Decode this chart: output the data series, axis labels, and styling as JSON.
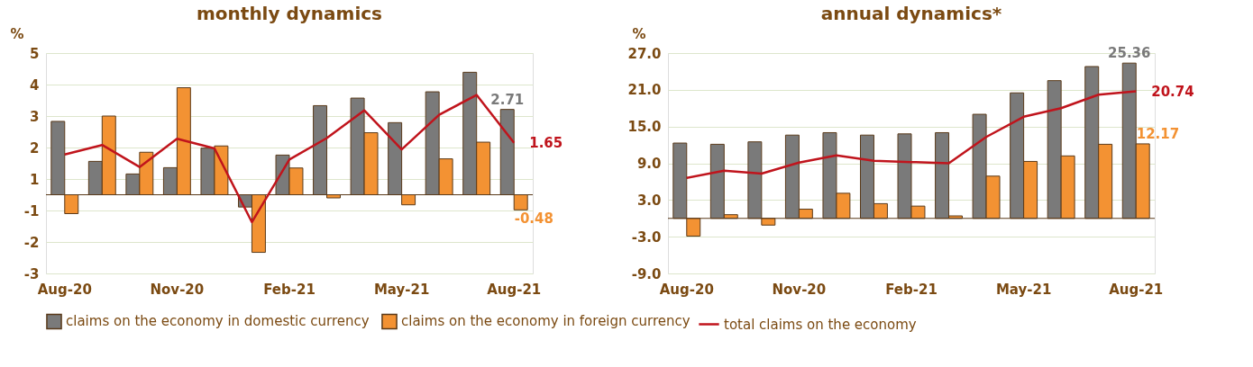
{
  "chart_data": [
    {
      "type": "bar",
      "title": "monthly dynamics",
      "ylabel": "%",
      "categories": [
        "Aug-20",
        null,
        null,
        "Nov-20",
        null,
        null,
        "Feb-21",
        null,
        null,
        "May-21",
        null,
        null,
        "Aug-21"
      ],
      "series": [
        {
          "name": "claims on the economy in domestic currency",
          "color": "#7a7a7a",
          "values": [
            2.33,
            1.06,
            0.66,
            0.86,
            1.48,
            -0.39,
            1.26,
            2.83,
            3.07,
            2.29,
            3.27,
            3.89,
            2.71
          ],
          "value_labels": [
            null,
            null,
            null,
            null,
            null,
            null,
            null,
            null,
            null,
            null,
            null,
            null,
            "2.71"
          ]
        },
        {
          "name": "claims on the economy in foreign currency",
          "color": "#f39233",
          "values": [
            -0.6,
            2.5,
            1.35,
            3.4,
            1.55,
            -1.83,
            0.85,
            -0.1,
            1.97,
            -0.32,
            1.14,
            1.67,
            -0.48
          ],
          "value_labels": [
            null,
            null,
            null,
            null,
            null,
            null,
            null,
            null,
            null,
            null,
            null,
            null,
            "-0.48"
          ]
        },
        {
          "name": "total claims on the economy",
          "type": "line",
          "color": "#c0141c",
          "values": [
            1.28,
            1.58,
            0.88,
            1.78,
            1.47,
            -0.87,
            1.12,
            1.8,
            2.68,
            1.44,
            2.54,
            3.17,
            1.65
          ],
          "value_labels": [
            null,
            null,
            null,
            null,
            null,
            null,
            null,
            null,
            null,
            null,
            null,
            null,
            "1.65"
          ]
        }
      ],
      "ylim": [
        -2.5,
        4.5
      ],
      "yticks": [
        {
          "value": -2.5,
          "label": "-3"
        },
        {
          "value": -1.5,
          "label": "-2"
        },
        {
          "value": -0.5,
          "label": "-1"
        },
        {
          "value": 0.5,
          "label": "1"
        },
        {
          "value": 1.5,
          "label": "2"
        },
        {
          "value": 2.5,
          "label": "3"
        },
        {
          "value": 3.5,
          "label": "4"
        },
        {
          "value": 4.5,
          "label": "5"
        }
      ],
      "grid": "y",
      "legend": "bottom"
    },
    {
      "type": "bar",
      "title": "annual dynamics*",
      "ylabel": "%",
      "categories": [
        "Aug-20",
        null,
        null,
        "Nov-20",
        null,
        null,
        "Feb-21",
        null,
        null,
        "May-21",
        null,
        null,
        "Aug-21"
      ],
      "series": [
        {
          "name": "claims on the economy in domestic currency",
          "color": "#7a7a7a",
          "values": [
            12.3,
            12.1,
            12.5,
            13.6,
            14.0,
            13.6,
            13.8,
            14.0,
            17.0,
            20.5,
            22.5,
            24.8,
            25.36
          ],
          "value_labels": [
            null,
            null,
            null,
            null,
            null,
            null,
            null,
            null,
            null,
            null,
            null,
            null,
            "25.36"
          ]
        },
        {
          "name": "claims on the economy in foreign currency",
          "color": "#f39233",
          "values": [
            -2.9,
            0.6,
            -1.1,
            1.5,
            4.1,
            2.4,
            2.0,
            0.4,
            6.9,
            9.3,
            10.2,
            12.1,
            12.17
          ],
          "value_labels": [
            null,
            null,
            null,
            null,
            null,
            null,
            null,
            null,
            null,
            null,
            null,
            null,
            "12.17"
          ]
        },
        {
          "name": "total claims on the economy",
          "type": "line",
          "color": "#c0141c",
          "values": [
            6.6,
            7.8,
            7.3,
            9.1,
            10.3,
            9.4,
            9.2,
            9.0,
            13.3,
            16.6,
            18.0,
            20.2,
            20.74
          ],
          "value_labels": [
            null,
            null,
            null,
            null,
            null,
            null,
            null,
            null,
            null,
            null,
            null,
            null,
            "20.74"
          ]
        }
      ],
      "ylim": [
        -9,
        27
      ],
      "yticks": [
        {
          "value": -9,
          "label": "-9.0"
        },
        {
          "value": -3,
          "label": "-3.0"
        },
        {
          "value": 3,
          "label": "3.0"
        },
        {
          "value": 9,
          "label": "9.0"
        },
        {
          "value": 15,
          "label": "15.0"
        },
        {
          "value": 21,
          "label": "21.0"
        },
        {
          "value": 27,
          "label": "27.0"
        }
      ],
      "grid": "y",
      "legend": "bottom"
    }
  ]
}
